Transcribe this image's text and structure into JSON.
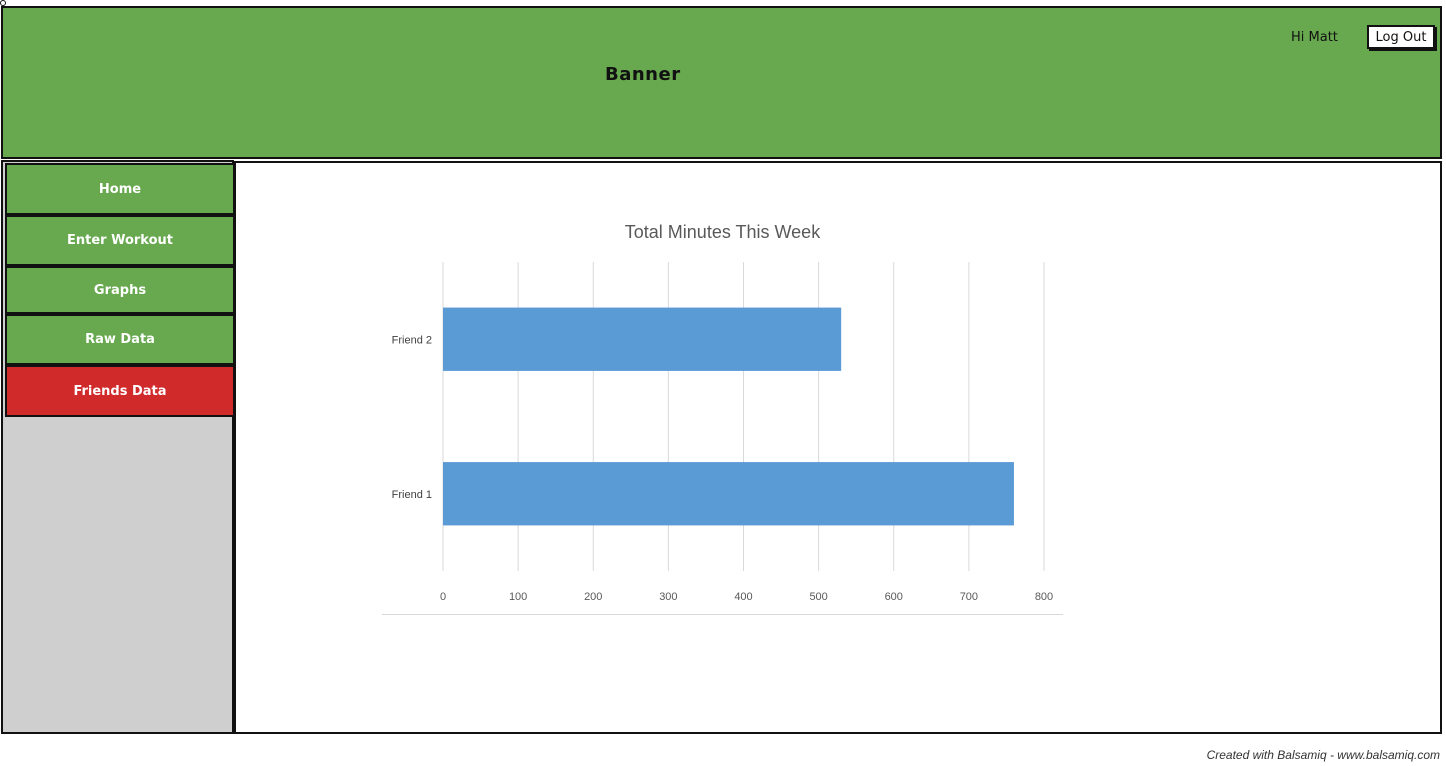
{
  "banner": {
    "title": "Banner",
    "greeting": "Hi Matt",
    "logout_label": "Log Out"
  },
  "sidebar": {
    "items": [
      {
        "label": "Home",
        "active": false
      },
      {
        "label": "Enter Workout",
        "active": false
      },
      {
        "label": "Graphs",
        "active": false
      },
      {
        "label": "Raw Data",
        "active": false
      },
      {
        "label": "Friends Data",
        "active": true
      }
    ]
  },
  "colors": {
    "banner": "#68a94f",
    "nav_item": "#68a94f",
    "nav_active": "#d12a2a",
    "sidebar_bg": "#cfcfcf",
    "bar": "#5b9bd5"
  },
  "chart_data": {
    "type": "bar",
    "orientation": "horizontal",
    "title": "Total Minutes This Week",
    "categories": [
      "Friend 2",
      "Friend 1"
    ],
    "values": [
      530,
      760
    ],
    "xlim": [
      0,
      800
    ],
    "xticks": [
      0,
      100,
      200,
      300,
      400,
      500,
      600,
      700,
      800
    ],
    "grid": "vertical",
    "legend": "none"
  },
  "footer": {
    "text": "Created with Balsamiq - www.balsamiq.com"
  }
}
